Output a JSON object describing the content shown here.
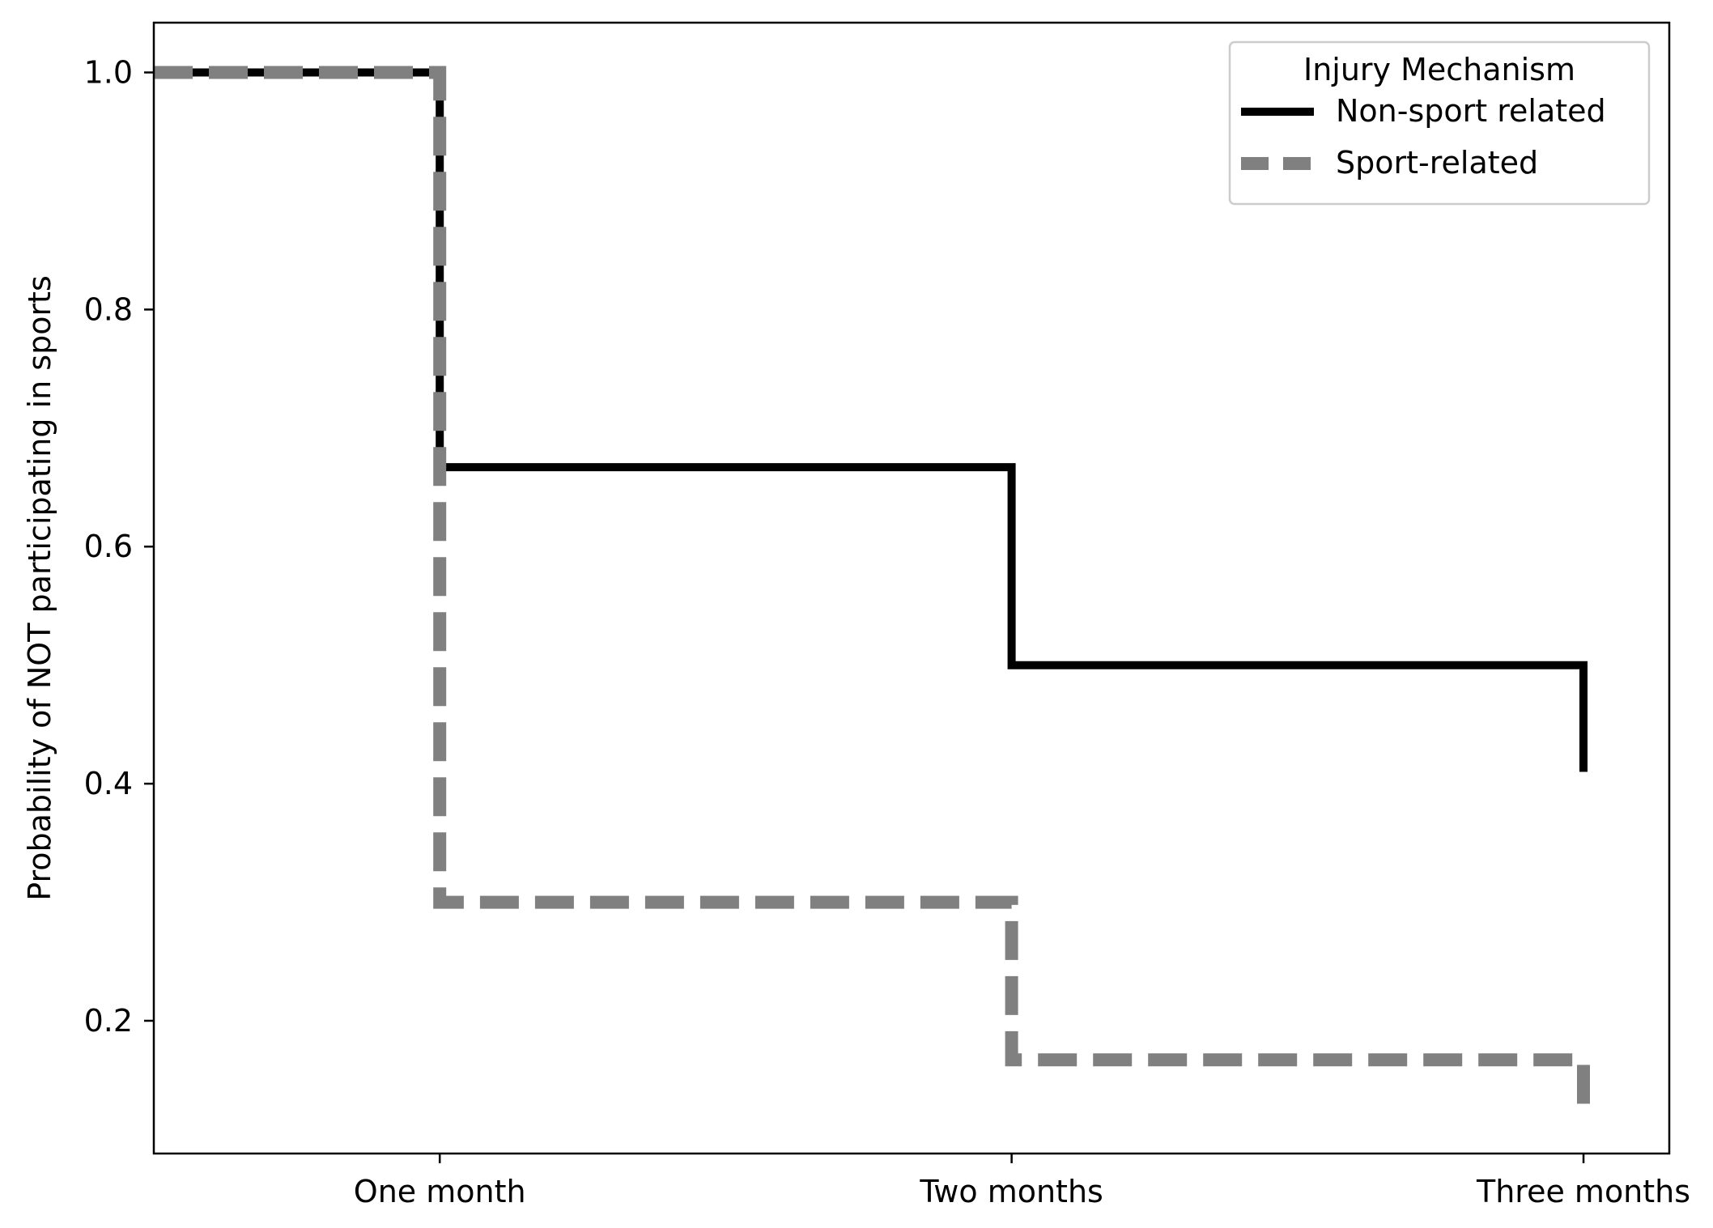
{
  "chart_data": {
    "type": "line",
    "subtype": "step",
    "xlabel": "",
    "ylabel": "Probability of NOT participating in sports",
    "categories": [
      "One month",
      "Two months",
      "Three months"
    ],
    "xlim": [
      0.5,
      3.15
    ],
    "ylim": [
      0.088,
      1.042
    ],
    "yticks": [
      0.2,
      0.4,
      0.6,
      0.8,
      1.0
    ],
    "ytick_labels": [
      "0.2",
      "0.4",
      "0.6",
      "0.8",
      "1.0"
    ],
    "grid": false,
    "legend": {
      "title": "Injury Mechanism",
      "location": "upper right"
    },
    "series": [
      {
        "name": "Non-sport related",
        "color": "#000000",
        "style": "solid",
        "points": [
          {
            "x": 0.5,
            "y": 1.0
          },
          {
            "x": 1,
            "y": 1.0
          },
          {
            "x": 1,
            "y": 0.667
          },
          {
            "x": 2,
            "y": 0.667
          },
          {
            "x": 2,
            "y": 0.5
          },
          {
            "x": 3,
            "y": 0.5
          },
          {
            "x": 3,
            "y": 0.41
          }
        ]
      },
      {
        "name": "Sport-related",
        "color": "#808080",
        "style": "dashed",
        "points": [
          {
            "x": 0.5,
            "y": 1.0
          },
          {
            "x": 1,
            "y": 1.0
          },
          {
            "x": 1,
            "y": 0.3
          },
          {
            "x": 2,
            "y": 0.3
          },
          {
            "x": 2,
            "y": 0.167
          },
          {
            "x": 3,
            "y": 0.167
          },
          {
            "x": 3,
            "y": 0.125
          }
        ]
      }
    ]
  }
}
